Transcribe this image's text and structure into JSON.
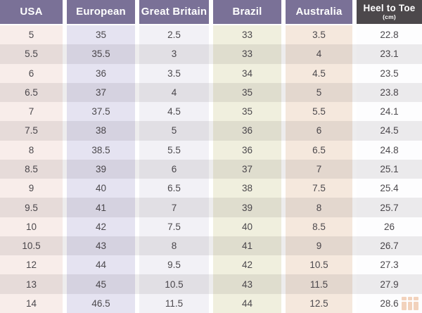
{
  "table": {
    "columns": [
      {
        "label": "USA"
      },
      {
        "label": "European"
      },
      {
        "label": "Great Britain"
      },
      {
        "label": "Brazil"
      },
      {
        "label": "Australia"
      },
      {
        "label": "Heel to Toe",
        "sublabel": "(cm)"
      }
    ],
    "rows": [
      [
        "5",
        "35",
        "2.5",
        "33",
        "3.5",
        "22.8"
      ],
      [
        "5.5",
        "35.5",
        "3",
        "33",
        "4",
        "23.1"
      ],
      [
        "6",
        "36",
        "3.5",
        "34",
        "4.5",
        "23.5"
      ],
      [
        "6.5",
        "37",
        "4",
        "35",
        "5",
        "23.8"
      ],
      [
        "7",
        "37.5",
        "4.5",
        "35",
        "5.5",
        "24.1"
      ],
      [
        "7.5",
        "38",
        "5",
        "36",
        "6",
        "24.5"
      ],
      [
        "8",
        "38.5",
        "5.5",
        "36",
        "6.5",
        "24.8"
      ],
      [
        "8.5",
        "39",
        "6",
        "37",
        "7",
        "25.1"
      ],
      [
        "9",
        "40",
        "6.5",
        "38",
        "7.5",
        "25.4"
      ],
      [
        "9.5",
        "41",
        "7",
        "39",
        "8",
        "25.7"
      ],
      [
        "10",
        "42",
        "7.5",
        "40",
        "8.5",
        "26"
      ],
      [
        "10.5",
        "43",
        "8",
        "41",
        "9",
        "26.7"
      ],
      [
        "12",
        "44",
        "9.5",
        "42",
        "10.5",
        "27.3"
      ],
      [
        "13",
        "45",
        "10.5",
        "43",
        "11.5",
        "27.9"
      ],
      [
        "14",
        "46.5",
        "11.5",
        "44",
        "12.5",
        "28.6"
      ]
    ]
  },
  "icons": {
    "watermark": "blocks-logo-icon"
  },
  "colors": {
    "header_bg": "#7a7197",
    "header_dark_bg": "#4c484b",
    "header_text": "#ffffff",
    "cell_text": "#4c494d",
    "column_bg": [
      "#f8edea",
      "#e5e3f1",
      "#f2f1f6",
      "#f0efde",
      "#f5e8dd",
      "#fdfdfe"
    ],
    "watermark": "#dd7a33"
  }
}
